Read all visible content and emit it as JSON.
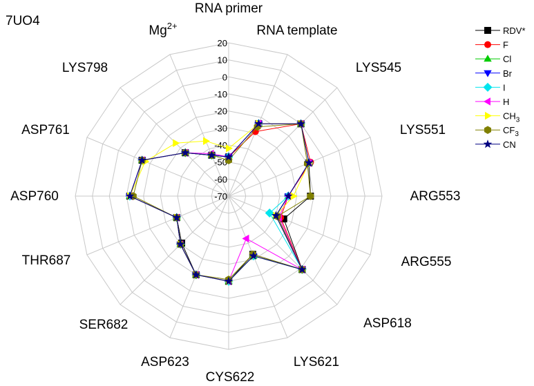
{
  "chart_data": {
    "type": "radar",
    "panel_label": "7UO4",
    "rlim": [
      -70,
      20
    ],
    "r_ticks": [
      "20",
      "10",
      "0",
      "-10",
      "-20",
      "-30",
      "-40",
      "-50",
      "-60",
      "-70"
    ],
    "grid": true,
    "legend_position": "top-right",
    "categories": [
      {
        "text": "RNA primer"
      },
      {
        "text": "RNA template"
      },
      {
        "text": "LYS545"
      },
      {
        "text": "LYS551"
      },
      {
        "text": "ARG553"
      },
      {
        "text": "ARG555"
      },
      {
        "text": "ASP618"
      },
      {
        "text": "LYS621"
      },
      {
        "text": "CYS622"
      },
      {
        "text": "ASP623"
      },
      {
        "text": "SER682"
      },
      {
        "text": "THR687"
      },
      {
        "text": "ASP760"
      },
      {
        "text": "ASP761"
      },
      {
        "text": "LYS798"
      },
      {
        "text": "Mg",
        "sup": "2+"
      }
    ],
    "series": [
      {
        "name": "RDV*",
        "sub": "",
        "color": "#000000",
        "marker": "square",
        "values": [
          -47,
          -24,
          -10,
          -19,
          -22,
          -35,
          -9,
          -33,
          -20,
          -20,
          -31,
          -37,
          -12,
          -15,
          -34,
          -44
        ]
      },
      {
        "name": "F",
        "sub": "",
        "color": "#ff0000",
        "marker": "circle",
        "values": [
          -47,
          -29,
          -10,
          -18,
          -35,
          -37,
          -9,
          -32,
          -20,
          -20,
          -30,
          -37,
          -12,
          -15,
          -34,
          -44
        ]
      },
      {
        "name": "Cl",
        "sub": "",
        "color": "#00cc00",
        "marker": "triangle-up",
        "values": [
          -47,
          -24,
          -10,
          -19,
          -35,
          -40,
          -9,
          -32,
          -20,
          -20,
          -30,
          -37,
          -12,
          -15,
          -34,
          -44
        ]
      },
      {
        "name": "Br",
        "sub": "",
        "color": "#0000ff",
        "marker": "triangle-down",
        "values": [
          -47,
          -24,
          -10,
          -19,
          -35,
          -40,
          -9,
          -32,
          -20,
          -20,
          -30,
          -37,
          -12,
          -15,
          -34,
          -44
        ]
      },
      {
        "name": "I",
        "sub": "",
        "color": "#00e5ee",
        "marker": "diamond",
        "values": [
          -47,
          -24,
          -10,
          -19,
          -35,
          -44,
          -9,
          -32,
          -20,
          -20,
          -30,
          -37,
          -12,
          -15,
          -34,
          -44
        ]
      },
      {
        "name": "H",
        "sub": "",
        "color": "#ff00ff",
        "marker": "triangle-left",
        "values": [
          -47,
          -24,
          -10,
          -19,
          -35,
          -38,
          -9,
          -43,
          -20,
          -20,
          -30,
          -37,
          -12,
          -15,
          -34,
          -43
        ]
      },
      {
        "name": "CH",
        "sub": "3",
        "color": "#ffff00",
        "marker": "triangle-right",
        "values": [
          -42,
          -24,
          -10,
          -19,
          -32,
          -40,
          -9,
          -32,
          -20,
          -20,
          -30,
          -37,
          -12,
          -17,
          -26,
          -35
        ]
      },
      {
        "name": "CF",
        "sub": "3",
        "color": "#808000",
        "marker": "hexagon",
        "values": [
          -49,
          -26,
          -10,
          -20,
          -22,
          -39,
          -9,
          -33,
          -21,
          -20,
          -30,
          -37,
          -14,
          -15,
          -34,
          -44
        ]
      },
      {
        "name": "CN",
        "sub": "",
        "color": "#000080",
        "marker": "star",
        "values": [
          -47,
          -24,
          -10,
          -19,
          -35,
          -40,
          -9,
          -32,
          -20,
          -20,
          -30,
          -37,
          -12,
          -15,
          -34,
          -44
        ]
      }
    ]
  }
}
